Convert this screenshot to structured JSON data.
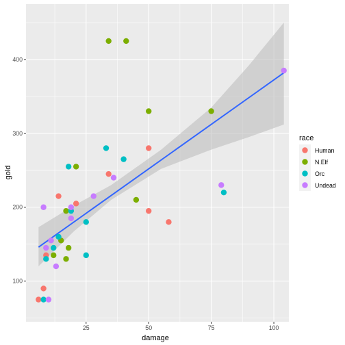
{
  "chart_data": {
    "type": "scatter",
    "xlabel": "damage",
    "ylabel": "gold",
    "xlim": [
      1,
      106
    ],
    "ylim": [
      45,
      475
    ],
    "x_ticks": [
      25,
      50,
      75,
      100
    ],
    "y_ticks": [
      100,
      200,
      300,
      400
    ],
    "x_tick_labels": [
      "25",
      "50",
      "75",
      "100"
    ],
    "y_tick_labels": [
      "100",
      "200",
      "300",
      "400"
    ],
    "grid": true,
    "legend": {
      "title": "race",
      "placement": "right",
      "entries": [
        "Human",
        "N.Elf",
        "Orc",
        "Undead"
      ]
    },
    "colors": {
      "Human": "#F8766D",
      "N.Elf": "#7CAE00",
      "Orc": "#00BFC4",
      "Undead": "#C77CFF",
      "panel": "#EBEBEB",
      "grid": "#FFFFFF",
      "smooth_line": "#3366FF",
      "ribbon": "#BEBEBE"
    },
    "series": [
      {
        "name": "Human",
        "points": [
          {
            "x": 6,
            "y": 75
          },
          {
            "x": 8,
            "y": 90
          },
          {
            "x": 9,
            "y": 135
          },
          {
            "x": 14,
            "y": 215
          },
          {
            "x": 21,
            "y": 205
          },
          {
            "x": 34,
            "y": 245
          },
          {
            "x": 50,
            "y": 280
          },
          {
            "x": 50,
            "y": 195
          },
          {
            "x": 58,
            "y": 180
          }
        ]
      },
      {
        "name": "N.Elf",
        "points": [
          {
            "x": 12,
            "y": 135
          },
          {
            "x": 15,
            "y": 155
          },
          {
            "x": 17,
            "y": 195
          },
          {
            "x": 17,
            "y": 130
          },
          {
            "x": 18,
            "y": 145
          },
          {
            "x": 21,
            "y": 255
          },
          {
            "x": 34,
            "y": 425
          },
          {
            "x": 41,
            "y": 425
          },
          {
            "x": 45,
            "y": 210
          },
          {
            "x": 50,
            "y": 330
          },
          {
            "x": 75,
            "y": 330
          }
        ]
      },
      {
        "name": "Orc",
        "points": [
          {
            "x": 8,
            "y": 75
          },
          {
            "x": 9,
            "y": 130
          },
          {
            "x": 12,
            "y": 145
          },
          {
            "x": 14,
            "y": 160
          },
          {
            "x": 18,
            "y": 255
          },
          {
            "x": 19,
            "y": 195
          },
          {
            "x": 25,
            "y": 180
          },
          {
            "x": 25,
            "y": 135
          },
          {
            "x": 33,
            "y": 280
          },
          {
            "x": 40,
            "y": 265
          },
          {
            "x": 80,
            "y": 220
          }
        ]
      },
      {
        "name": "Undead",
        "points": [
          {
            "x": 8,
            "y": 200
          },
          {
            "x": 9,
            "y": 145
          },
          {
            "x": 10,
            "y": 75
          },
          {
            "x": 11,
            "y": 155
          },
          {
            "x": 13,
            "y": 120
          },
          {
            "x": 19,
            "y": 185
          },
          {
            "x": 19,
            "y": 200
          },
          {
            "x": 28,
            "y": 215
          },
          {
            "x": 36,
            "y": 240
          },
          {
            "x": 79,
            "y": 230
          },
          {
            "x": 104,
            "y": 385
          }
        ]
      }
    ],
    "smooth": {
      "method": "lm",
      "x": [
        6,
        104
      ],
      "y": [
        146,
        382
      ],
      "band_x": [
        6,
        20,
        35,
        55,
        75,
        90,
        104
      ],
      "band_lower": [
        120,
        167,
        210,
        252,
        278,
        295,
        312
      ],
      "band_upper": [
        173,
        202,
        230,
        278,
        335,
        392,
        450
      ]
    }
  }
}
